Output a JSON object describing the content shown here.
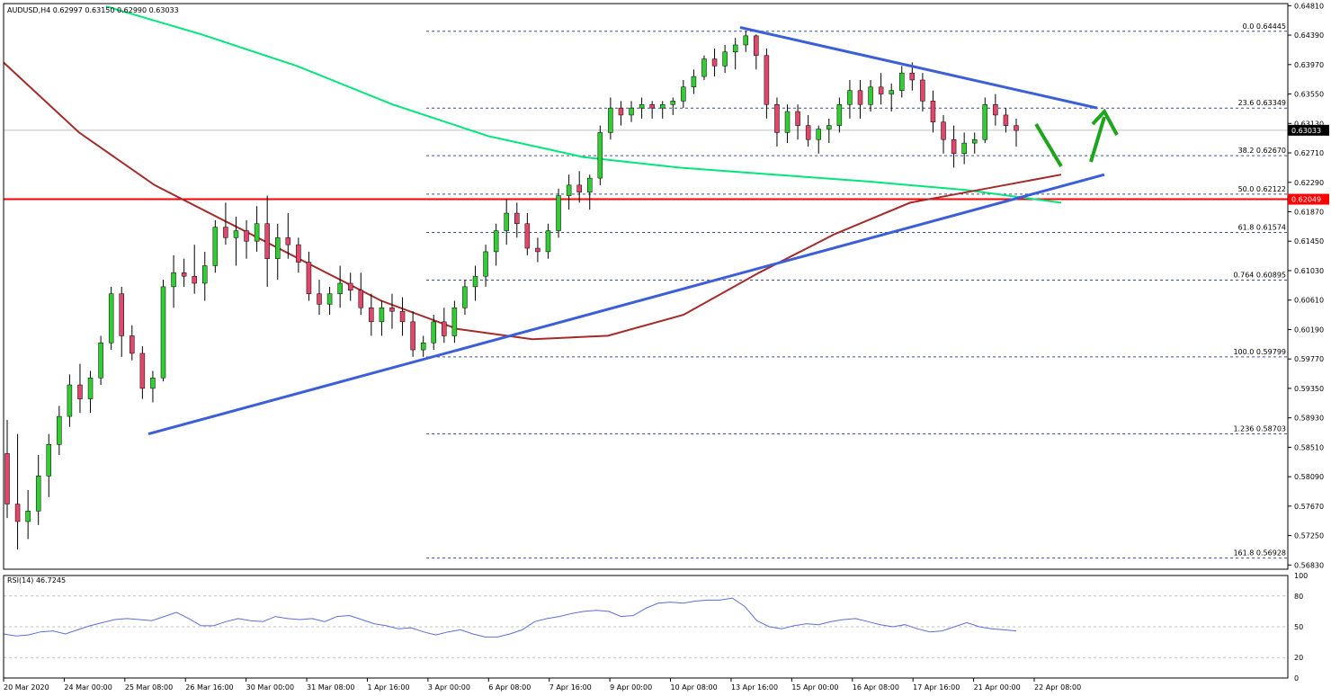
{
  "chart_data": {
    "type": "candlestick",
    "symbol_line": "AUDUSD,H4  0.62997 0.63150 0.62990 0.63033",
    "indicator_label": "RSI(14) 46.7245",
    "price_axis": {
      "range": [
        0.5677,
        0.6484
      ],
      "ticks": [
        "0.64810",
        "0.64390",
        "0.63970",
        "0.63550",
        "0.63130",
        "0.62710",
        "0.62290",
        "0.61870",
        "0.61450",
        "0.61030",
        "0.60610",
        "0.60190",
        "0.59770",
        "0.59350",
        "0.58930",
        "0.58510",
        "0.58090",
        "0.57670",
        "0.57250",
        "0.56830"
      ]
    },
    "rsi_axis": {
      "range": [
        0,
        100
      ],
      "ticks": [
        "100",
        "80",
        "50",
        "20",
        "0"
      ],
      "levels": [
        80,
        50,
        20
      ]
    },
    "time_labels": [
      "20 Mar 2020",
      "24 Mar 00:00",
      "25 Mar 08:00",
      "26 Mar 16:00",
      "30 Mar 00:00",
      "31 Mar 08:00",
      "1 Apr 16:00",
      "3 Apr 00:00",
      "6 Apr 08:00",
      "7 Apr 16:00",
      "9 Apr 00:00",
      "10 Apr 08:00",
      "13 Apr 16:00",
      "15 Apr 00:00",
      "16 Apr 08:00",
      "17 Apr 16:00",
      "21 Apr 00:00",
      "22 Apr 08:00"
    ],
    "current_price": {
      "label": "0.63033",
      "value": 0.63033,
      "color": "#000000"
    },
    "support_level": {
      "label": "0.62049",
      "value": 0.62049,
      "color": "#ff0000"
    },
    "fibonacci": [
      {
        "label": "0.0 0.64445",
        "value": 0.64445
      },
      {
        "label": "23.6 0.63349",
        "value": 0.63349
      },
      {
        "label": "38.2 0.62670",
        "value": 0.6267
      },
      {
        "label": "50.0 0.62122",
        "value": 0.62122
      },
      {
        "label": "61.8 0.61574",
        "value": 0.61574
      },
      {
        "label": "0.764 0.60895",
        "value": 0.60895
      },
      {
        "label": "100.0 0.59799",
        "value": 0.59799
      },
      {
        "label": "1.236 0.58703",
        "value": 0.58703
      },
      {
        "label": "161.8 0.56928",
        "value": 0.56928
      }
    ],
    "colors": {
      "bull": "#32cd32",
      "bear": "#e0476a",
      "wick": "#000000",
      "sma100": "#a52a2a",
      "sma200": "#00e67a",
      "trendline": "#3b5fd6",
      "arrow": "#1ea51e",
      "fib": "#3b4fa0",
      "grid": "#c0c0c0"
    },
    "candles": [
      [
        0.5842,
        0.589,
        0.575,
        0.577
      ],
      [
        0.577,
        0.587,
        0.5705,
        0.5745
      ],
      [
        0.5745,
        0.579,
        0.572,
        0.576
      ],
      [
        0.576,
        0.584,
        0.574,
        0.581
      ],
      [
        0.581,
        0.587,
        0.578,
        0.5855
      ],
      [
        0.5855,
        0.591,
        0.584,
        0.5895
      ],
      [
        0.5895,
        0.5955,
        0.588,
        0.594
      ],
      [
        0.594,
        0.597,
        0.59,
        0.592
      ],
      [
        0.592,
        0.596,
        0.59,
        0.595
      ],
      [
        0.595,
        0.601,
        0.594,
        0.6
      ],
      [
        0.6,
        0.608,
        0.599,
        0.607
      ],
      [
        0.607,
        0.608,
        0.598,
        0.601
      ],
      [
        0.601,
        0.6025,
        0.5975,
        0.5985
      ],
      [
        0.5985,
        0.5995,
        0.592,
        0.5935
      ],
      [
        0.5935,
        0.596,
        0.5915,
        0.595
      ],
      [
        0.595,
        0.609,
        0.5945,
        0.608
      ],
      [
        0.608,
        0.6125,
        0.605,
        0.61
      ],
      [
        0.61,
        0.612,
        0.608,
        0.6095
      ],
      [
        0.6095,
        0.614,
        0.607,
        0.6085
      ],
      [
        0.6085,
        0.613,
        0.606,
        0.611
      ],
      [
        0.611,
        0.6175,
        0.61,
        0.6165
      ],
      [
        0.6165,
        0.62,
        0.614,
        0.615
      ],
      [
        0.615,
        0.618,
        0.611,
        0.616
      ],
      [
        0.616,
        0.6175,
        0.612,
        0.6145
      ],
      [
        0.6145,
        0.6195,
        0.613,
        0.617
      ],
      [
        0.617,
        0.621,
        0.608,
        0.612
      ],
      [
        0.612,
        0.617,
        0.609,
        0.615
      ],
      [
        0.615,
        0.6185,
        0.612,
        0.614
      ],
      [
        0.614,
        0.615,
        0.61,
        0.6115
      ],
      [
        0.6115,
        0.613,
        0.606,
        0.607
      ],
      [
        0.607,
        0.609,
        0.604,
        0.6055
      ],
      [
        0.6055,
        0.608,
        0.604,
        0.607
      ],
      [
        0.607,
        0.611,
        0.605,
        0.6085
      ],
      [
        0.6085,
        0.61,
        0.606,
        0.6075
      ],
      [
        0.6075,
        0.61,
        0.604,
        0.605
      ],
      [
        0.605,
        0.607,
        0.601,
        0.603
      ],
      [
        0.603,
        0.606,
        0.601,
        0.605
      ],
      [
        0.605,
        0.607,
        0.602,
        0.6045
      ],
      [
        0.6045,
        0.6065,
        0.601,
        0.603
      ],
      [
        0.603,
        0.6045,
        0.598,
        0.599
      ],
      [
        0.599,
        0.601,
        0.598,
        0.6
      ],
      [
        0.6,
        0.604,
        0.599,
        0.603
      ],
      [
        0.603,
        0.605,
        0.6,
        0.601
      ],
      [
        0.601,
        0.606,
        0.6,
        0.605
      ],
      [
        0.605,
        0.609,
        0.604,
        0.608
      ],
      [
        0.608,
        0.611,
        0.606,
        0.6095
      ],
      [
        0.6095,
        0.614,
        0.608,
        0.613
      ],
      [
        0.613,
        0.617,
        0.611,
        0.616
      ],
      [
        0.616,
        0.6205,
        0.614,
        0.6185
      ],
      [
        0.6185,
        0.62,
        0.615,
        0.617
      ],
      [
        0.617,
        0.6185,
        0.6125,
        0.6135
      ],
      [
        0.6135,
        0.615,
        0.6115,
        0.613
      ],
      [
        0.613,
        0.617,
        0.612,
        0.616
      ],
      [
        0.616,
        0.622,
        0.615,
        0.621
      ],
      [
        0.621,
        0.624,
        0.619,
        0.6225
      ],
      [
        0.6225,
        0.6245,
        0.62,
        0.6215
      ],
      [
        0.6215,
        0.624,
        0.619,
        0.6235
      ],
      [
        0.6235,
        0.631,
        0.6225,
        0.63
      ],
      [
        0.63,
        0.635,
        0.629,
        0.6335
      ],
      [
        0.6335,
        0.6345,
        0.631,
        0.6325
      ],
      [
        0.6325,
        0.6345,
        0.6315,
        0.6335
      ],
      [
        0.6335,
        0.635,
        0.632,
        0.634
      ],
      [
        0.634,
        0.6345,
        0.632,
        0.6335
      ],
      [
        0.6335,
        0.6345,
        0.632,
        0.634
      ],
      [
        0.634,
        0.635,
        0.6325,
        0.6345
      ],
      [
        0.6345,
        0.6375,
        0.6335,
        0.6365
      ],
      [
        0.6365,
        0.639,
        0.6355,
        0.638
      ],
      [
        0.638,
        0.641,
        0.6375,
        0.6405
      ],
      [
        0.6405,
        0.642,
        0.638,
        0.6395
      ],
      [
        0.6395,
        0.6425,
        0.6385,
        0.6415
      ],
      [
        0.6415,
        0.6435,
        0.639,
        0.6425
      ],
      [
        0.6425,
        0.6445,
        0.6415,
        0.6438
      ],
      [
        0.6438,
        0.644,
        0.639,
        0.641
      ],
      [
        0.641,
        0.642,
        0.632,
        0.634
      ],
      [
        0.634,
        0.635,
        0.628,
        0.63
      ],
      [
        0.63,
        0.634,
        0.6285,
        0.633
      ],
      [
        0.633,
        0.634,
        0.629,
        0.631
      ],
      [
        0.631,
        0.6325,
        0.628,
        0.629
      ],
      [
        0.629,
        0.631,
        0.627,
        0.6305
      ],
      [
        0.6305,
        0.632,
        0.6285,
        0.631
      ],
      [
        0.631,
        0.635,
        0.63,
        0.634
      ],
      [
        0.634,
        0.6375,
        0.632,
        0.636
      ],
      [
        0.636,
        0.6375,
        0.632,
        0.634
      ],
      [
        0.634,
        0.6375,
        0.633,
        0.6365
      ],
      [
        0.6365,
        0.6385,
        0.634,
        0.6355
      ],
      [
        0.6355,
        0.637,
        0.633,
        0.636
      ],
      [
        0.636,
        0.6395,
        0.635,
        0.6385
      ],
      [
        0.6385,
        0.64,
        0.636,
        0.6375
      ],
      [
        0.6375,
        0.6385,
        0.633,
        0.6345
      ],
      [
        0.6345,
        0.636,
        0.63,
        0.6315
      ],
      [
        0.6315,
        0.6325,
        0.627,
        0.629
      ],
      [
        0.629,
        0.631,
        0.625,
        0.627
      ],
      [
        0.627,
        0.63,
        0.6255,
        0.6285
      ],
      [
        0.6285,
        0.63,
        0.627,
        0.629
      ],
      [
        0.629,
        0.635,
        0.6285,
        0.634
      ],
      [
        0.634,
        0.6355,
        0.631,
        0.6325
      ],
      [
        0.6325,
        0.6335,
        0.63,
        0.631
      ],
      [
        0.631,
        0.632,
        0.628,
        0.6303
      ]
    ],
    "sma200": [
      0.648,
      0.644,
      0.6395,
      0.634,
      0.6295,
      0.6265,
      0.625,
      0.624,
      0.623,
      0.6218,
      0.62
    ],
    "sma100": [
      0.64,
      0.63,
      0.6225,
      0.617,
      0.6115,
      0.606,
      0.602,
      0.6005,
      0.601,
      0.604,
      0.61,
      0.6155,
      0.62,
      0.622,
      0.624
    ],
    "rsi": [
      43,
      41,
      42,
      45,
      46,
      43,
      47,
      51,
      54,
      57,
      58,
      57,
      56,
      60,
      64,
      58,
      51,
      51,
      55,
      58,
      56,
      55,
      60,
      58,
      57,
      58,
      55,
      60,
      61,
      57,
      53,
      51,
      48,
      49,
      45,
      42,
      45,
      47,
      43,
      40,
      40,
      43,
      47,
      55,
      58,
      60,
      63,
      65,
      66,
      65,
      60,
      61,
      68,
      73,
      74,
      73,
      75,
      76,
      76,
      78,
      70,
      56,
      50,
      48,
      51,
      53,
      52,
      55,
      57,
      58,
      55,
      52,
      50,
      52,
      48,
      45,
      46,
      50,
      54,
      50,
      48,
      47,
      46
    ],
    "trendlines": [
      {
        "from": [
          "25 Mar 08:00",
          0.587
        ],
        "to": [
          "22 Apr 08:00",
          0.624
        ]
      },
      {
        "from": [
          "13 Apr 16:00",
          0.645
        ],
        "to": [
          "22 Apr 08:00",
          0.6335
        ]
      }
    ]
  }
}
